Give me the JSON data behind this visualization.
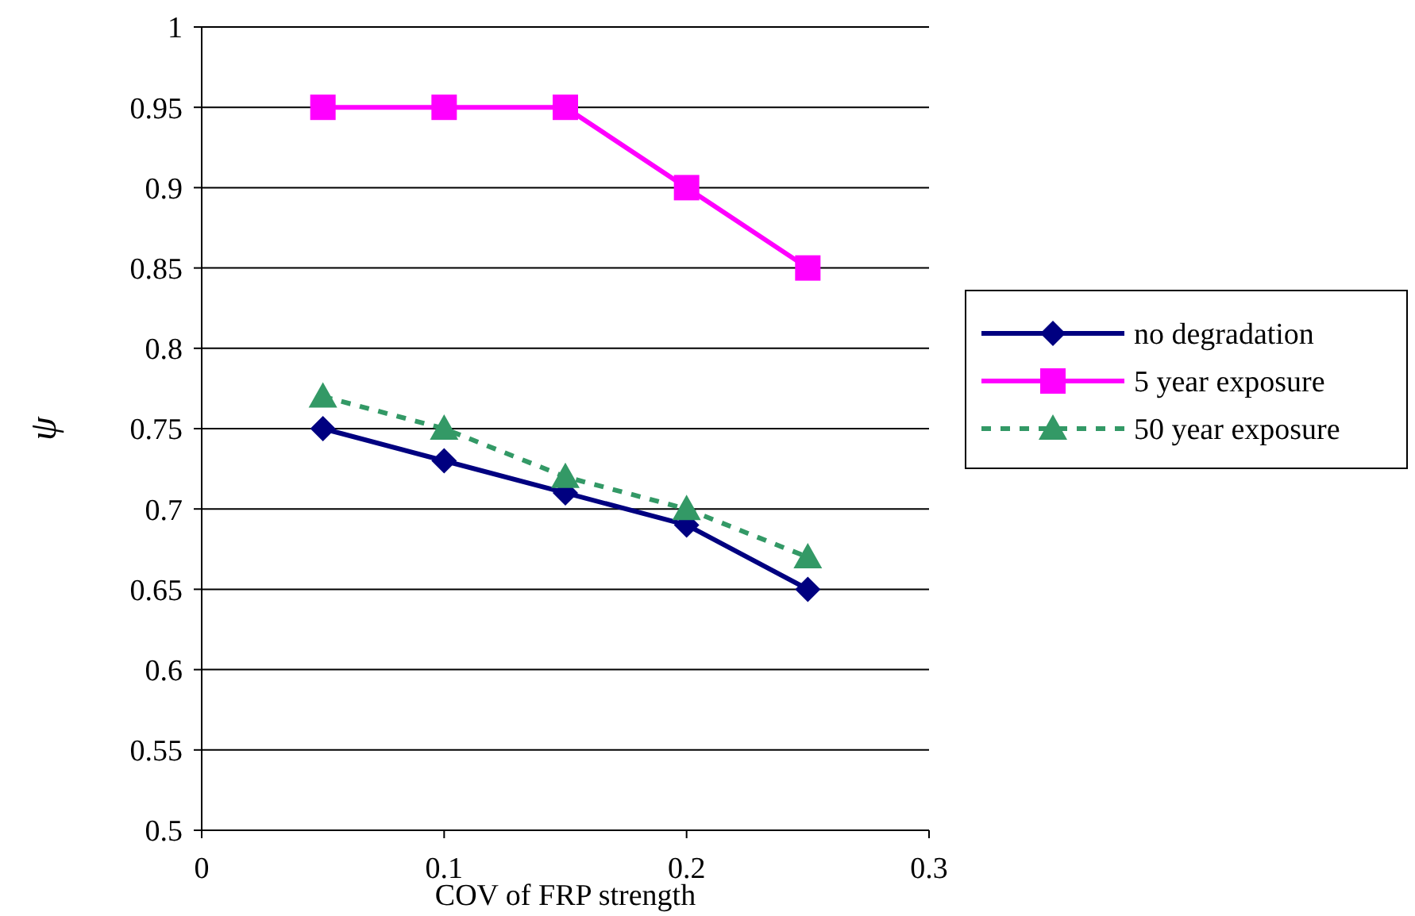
{
  "chart_data": {
    "type": "line",
    "xlabel": "COV of FRP strength",
    "ylabel": "ψ",
    "x": [
      0.05,
      0.1,
      0.15,
      0.2,
      0.25
    ],
    "xlim": [
      0,
      0.3
    ],
    "xticks": [
      0,
      0.1,
      0.2,
      0.3
    ],
    "ylim": [
      0.5,
      1
    ],
    "yticks": [
      0.5,
      0.55,
      0.6,
      0.65,
      0.7,
      0.75,
      0.8,
      0.85,
      0.9,
      0.95,
      1
    ],
    "grid": "y",
    "legend": "right",
    "series": [
      {
        "name": "no degradation",
        "color": "#000080",
        "values": [
          0.75,
          0.73,
          0.71,
          0.69,
          0.65
        ],
        "marker": "diamond",
        "line_style": "solid"
      },
      {
        "name": "5 year exposure",
        "color": "#ff00ff",
        "values": [
          0.95,
          0.95,
          0.95,
          0.9,
          0.85
        ],
        "marker": "square",
        "line_style": "solid"
      },
      {
        "name": "50 year exposure",
        "color": "#339966",
        "values": [
          0.77,
          0.75,
          0.72,
          0.7,
          0.67
        ],
        "marker": "triangle",
        "line_style": "dashed"
      }
    ]
  }
}
